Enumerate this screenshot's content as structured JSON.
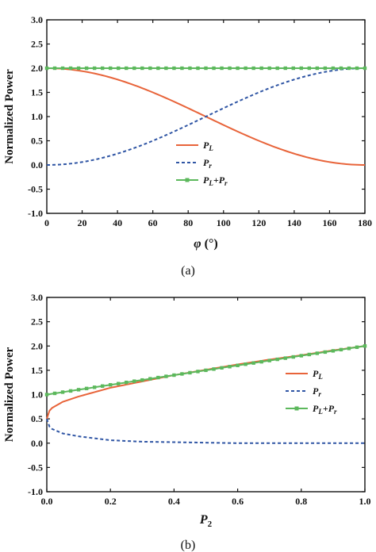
{
  "chart_data": [
    {
      "type": "line",
      "panel_label": "(a)",
      "xlabel": "φ (°)",
      "ylabel": "Normalized Power",
      "xlim": [
        0,
        180
      ],
      "ylim": [
        -1.0,
        3.0
      ],
      "x_ticks": [
        "0",
        "20",
        "40",
        "60",
        "80",
        "100",
        "120",
        "140",
        "160",
        "180"
      ],
      "y_ticks": [
        "-1.0",
        "-0.5",
        "0.0",
        "0.5",
        "1.0",
        "1.5",
        "2.0",
        "2.5",
        "3.0"
      ],
      "grid": false,
      "legend_position": "center-lower",
      "x": [
        0,
        20,
        40,
        60,
        80,
        90,
        100,
        120,
        140,
        160,
        180
      ],
      "series": [
        {
          "name": "P_L",
          "legend": {
            "main": "P",
            "sub": "L"
          },
          "color": "#e8643a",
          "style": "solid",
          "values": [
            2.0,
            1.94,
            1.77,
            1.5,
            1.17,
            1.0,
            0.83,
            0.5,
            0.23,
            0.06,
            0.0
          ]
        },
        {
          "name": "P_r",
          "legend": {
            "main": "P",
            "sub": "r"
          },
          "color": "#2f55a4",
          "style": "dashed",
          "values": [
            0.0,
            0.06,
            0.23,
            0.5,
            0.83,
            1.0,
            1.17,
            1.5,
            1.77,
            1.94,
            2.0
          ]
        },
        {
          "name": "P_L+P_r",
          "legend": {
            "main": "P",
            "sub": "L",
            "main2": "P",
            "sub2": "r"
          },
          "color": "#5cb85c",
          "style": "solid-square-markers",
          "values": [
            2.0,
            2.0,
            2.0,
            2.0,
            2.0,
            2.0,
            2.0,
            2.0,
            2.0,
            2.0,
            2.0
          ]
        }
      ]
    },
    {
      "type": "line",
      "panel_label": "(b)",
      "xlabel": "P",
      "xlabel_sub": "2",
      "ylabel": "Normalized Power",
      "xlim": [
        0,
        1.0
      ],
      "ylim": [
        -1.0,
        3.0
      ],
      "x_ticks": [
        "0.0",
        "0.2",
        "0.4",
        "0.6",
        "0.8",
        "1.0"
      ],
      "y_ticks": [
        "-1.0",
        "-0.5",
        "0.0",
        "0.5",
        "1.0",
        "1.5",
        "2.0",
        "2.5",
        "3.0"
      ],
      "grid": false,
      "legend_position": "right-middle",
      "x": [
        0.0,
        0.01,
        0.05,
        0.1,
        0.2,
        0.3,
        0.4,
        0.5,
        0.6,
        0.7,
        0.8,
        0.9,
        1.0
      ],
      "series": [
        {
          "name": "P_L",
          "legend": {
            "main": "P",
            "sub": "L"
          },
          "color": "#e8643a",
          "style": "solid",
          "values": [
            0.5,
            0.7,
            0.85,
            0.96,
            1.14,
            1.27,
            1.4,
            1.51,
            1.62,
            1.72,
            1.81,
            1.91,
            2.0
          ]
        },
        {
          "name": "P_r",
          "legend": {
            "main": "P",
            "sub": "r"
          },
          "color": "#2f55a4",
          "style": "dashed",
          "values": [
            0.5,
            0.31,
            0.2,
            0.14,
            0.06,
            0.03,
            0.02,
            0.01,
            0.0,
            0.0,
            0.0,
            0.0,
            0.0
          ]
        },
        {
          "name": "P_L+P_r",
          "legend": {
            "main": "P",
            "sub": "L",
            "main2": "P",
            "sub2": "r"
          },
          "color": "#5cb85c",
          "style": "solid-square-markers",
          "values": [
            1.0,
            1.01,
            1.05,
            1.1,
            1.2,
            1.3,
            1.4,
            1.5,
            1.6,
            1.7,
            1.8,
            1.9,
            2.0
          ]
        }
      ]
    }
  ]
}
